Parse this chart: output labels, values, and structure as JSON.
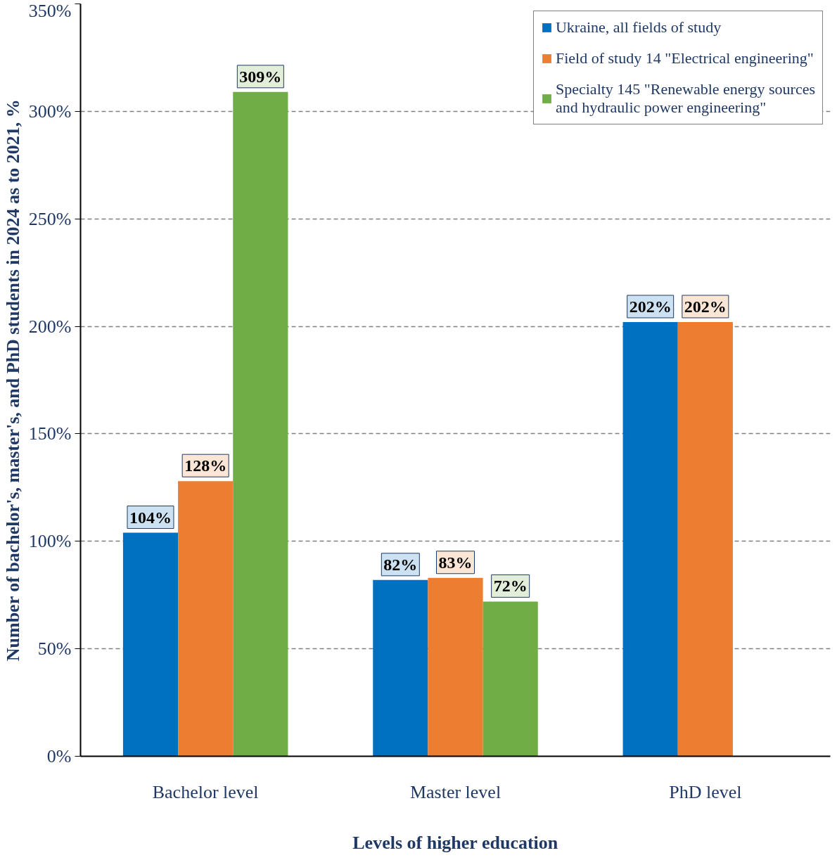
{
  "chart_data": {
    "type": "bar",
    "xlabel": "Levels of higher education",
    "ylabel": "Number of bachelor's, master's, and PhD students in 2024 as to 2021, %",
    "categories": [
      "Bachelor level",
      "Master level",
      "PhD level"
    ],
    "series": [
      {
        "name": "Ukraine, all fields of study",
        "color": "#0070c0",
        "values": [
          104,
          82,
          202
        ],
        "value_labels": [
          "104%",
          "82%",
          "202%"
        ]
      },
      {
        "name": "Field of study 14 \"Electrical engineering\"",
        "color": "#ed7d31",
        "values": [
          128,
          83,
          202
        ],
        "value_labels": [
          "128%",
          "83%",
          "202%"
        ]
      },
      {
        "name": "Specialty 145 \"Renewable energy sources and hydraulic power engineering\"",
        "color": "#70ad47",
        "values": [
          309,
          72,
          null
        ],
        "value_labels": [
          "309%",
          "72%",
          null
        ]
      }
    ],
    "ylim": [
      0,
      350
    ],
    "yticks": [
      {
        "value": 0,
        "label": "0%"
      },
      {
        "value": 50,
        "label": "50%"
      },
      {
        "value": 100,
        "label": "100%"
      },
      {
        "value": 150,
        "label": "150%"
      },
      {
        "value": 200,
        "label": "200%"
      },
      {
        "value": 250,
        "label": "250%"
      },
      {
        "value": 300,
        "label": "300%"
      },
      {
        "value": 350,
        "label": "350%"
      }
    ],
    "grid": "y",
    "legend": "top right"
  }
}
